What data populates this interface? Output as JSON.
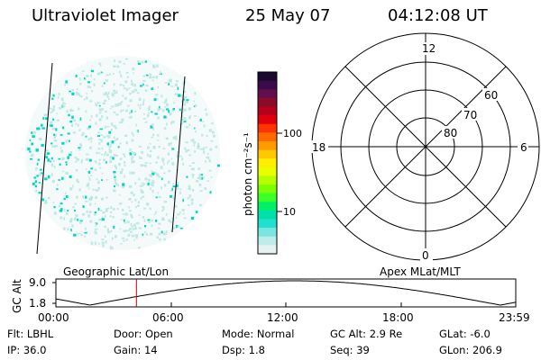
{
  "header": {
    "title": "Ultraviolet Imager",
    "date": "25 May 07",
    "time": "04:12:08 UT"
  },
  "colorbar": {
    "unit_label": "photon cm⁻²s⁻¹",
    "ticks": [
      "100",
      "10"
    ],
    "colors": [
      "#1a0a2e",
      "#3b0a4a",
      "#62104d",
      "#8a0c2a",
      "#b8001a",
      "#e0000d",
      "#ff3300",
      "#ff6a00",
      "#ff9a00",
      "#ffc800",
      "#ffee00",
      "#e8ff00",
      "#b5ff00",
      "#7cff00",
      "#3cff2a",
      "#00f06a",
      "#00e0a8",
      "#22e0d0",
      "#7ae6e2",
      "#bdecea",
      "#e6f2f0"
    ]
  },
  "polar": {
    "labels": [
      "12",
      "18",
      "6",
      "0",
      "60",
      "70",
      "80"
    ]
  },
  "timeline": {
    "ylabel": "GC Alt",
    "ytick_top": "9.0",
    "ytick_bottom": "1.8",
    "left_caption": "Geographic Lat/Lon",
    "right_caption": "Apex MLat/MLT",
    "xticks": [
      "00:00",
      "06:00",
      "12:00",
      "18:00",
      "23:59"
    ],
    "marker_color": "#c00000"
  },
  "info": {
    "row1": [
      "Flt: LBHL",
      "Door: Open",
      "Mode: Normal",
      "GC Alt: 2.9 Re",
      "GLat:  -6.0"
    ],
    "row2": [
      "IP: 36.0",
      "Gain: 14",
      "Dsp:    1.8",
      "Seq: 39",
      "GLon: 206.9"
    ]
  },
  "colors": {
    "speckle": "#00d8c0",
    "speckle_light": "#bfe8e4"
  }
}
